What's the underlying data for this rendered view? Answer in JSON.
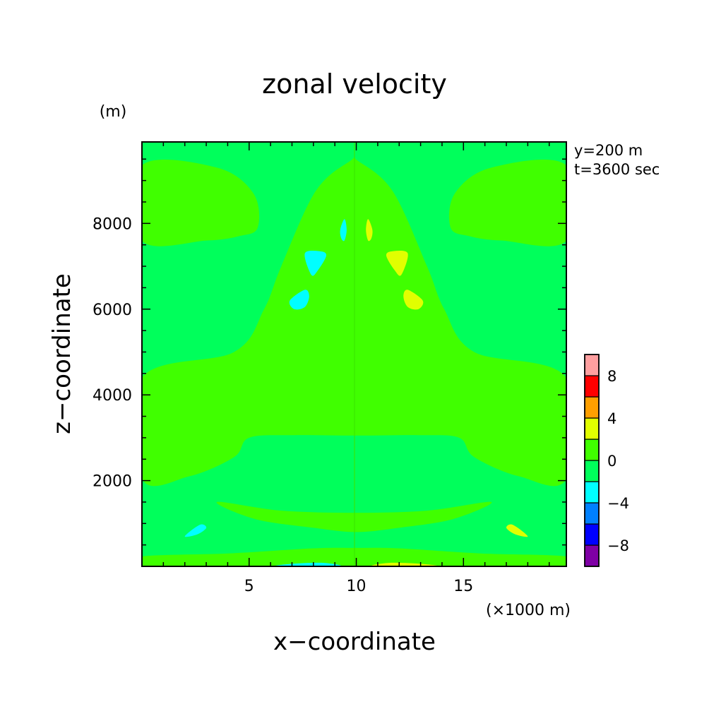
{
  "chart_data": {
    "type": "heatmap",
    "title": "zonal velocity",
    "xlabel": "x−coordinate",
    "ylabel": "z−coordinate",
    "y_unit": "(m)",
    "x_unit": "(×1000 m)",
    "xlim": [
      0,
      19.8
    ],
    "ylim": [
      0,
      9900
    ],
    "x_ticks": [
      5,
      10,
      15
    ],
    "x_tick_labels": [
      "5",
      "10",
      "15"
    ],
    "y_ticks": [
      2000,
      4000,
      6000,
      8000
    ],
    "y_tick_labels": [
      "2000",
      "4000",
      "6000",
      "8000"
    ],
    "annotations": [
      "y=200 m",
      "t=3600 sec"
    ],
    "colorbar": {
      "levels": [
        -10,
        -8,
        -6,
        -4,
        -2,
        0,
        2,
        4,
        6,
        8,
        10
      ],
      "colors": [
        "#7f00a5",
        "#0000ff",
        "#0080ff",
        "#00ffff",
        "#00ff5b",
        "#40ff00",
        "#e1ff00",
        "#ff9f00",
        "#ff0000",
        "#ff9fa0"
      ],
      "tick_values": [
        -8,
        -4,
        0,
        4,
        8
      ],
      "tick_labels": [
        "−8",
        "−4",
        "0",
        "4",
        "8"
      ]
    },
    "background_band": "0 to -2",
    "regions": [
      {
        "name": "upper-left-lobe",
        "band": "0 to 2",
        "pts": [
          [
            0,
            9350
          ],
          [
            3.5,
            9300
          ],
          [
            5.2,
            8700
          ],
          [
            5.4,
            7900
          ],
          [
            4.5,
            7700
          ],
          [
            3,
            7600
          ],
          [
            0,
            7600
          ]
        ]
      },
      {
        "name": "upper-right-lobe",
        "band": "0 to 2",
        "pts": [
          [
            19.8,
            9350
          ],
          [
            16.3,
            9300
          ],
          [
            14.6,
            8700
          ],
          [
            14.4,
            7900
          ],
          [
            15.3,
            7700
          ],
          [
            16.8,
            7600
          ],
          [
            19.8,
            7600
          ]
        ]
      },
      {
        "name": "central-plume",
        "band": "0 to 2",
        "pts": [
          [
            9.7,
            9450
          ],
          [
            8.1,
            8750
          ],
          [
            6.5,
            7000
          ],
          [
            5.7,
            6000
          ],
          [
            4.3,
            5000
          ],
          [
            0,
            4400
          ],
          [
            0,
            2050
          ],
          [
            2.2,
            2100
          ],
          [
            4.3,
            2550
          ],
          [
            5,
            3000
          ],
          [
            7,
            3060
          ],
          [
            10,
            3050
          ],
          [
            13,
            3060
          ],
          [
            14.8,
            3000
          ],
          [
            15.5,
            2550
          ],
          [
            17.6,
            2100
          ],
          [
            19.8,
            2050
          ],
          [
            19.8,
            4400
          ],
          [
            15.5,
            5000
          ],
          [
            14.1,
            6000
          ],
          [
            13.3,
            7000
          ],
          [
            11.7,
            8750
          ],
          [
            10.1,
            9450
          ]
        ]
      },
      {
        "name": "lower-band",
        "band": "0 to 2",
        "pts": [
          [
            3.5,
            1500
          ],
          [
            6.5,
            1300
          ],
          [
            10,
            1250
          ],
          [
            13.3,
            1300
          ],
          [
            16.3,
            1500
          ],
          [
            14.5,
            1100
          ],
          [
            12,
            900
          ],
          [
            10,
            800
          ],
          [
            8,
            900
          ],
          [
            5.3,
            1100
          ]
        ]
      },
      {
        "name": "bottom-strip",
        "band": "0 to 2",
        "pts": [
          [
            0,
            230
          ],
          [
            4,
            300
          ],
          [
            8,
            420
          ],
          [
            10,
            430
          ],
          [
            12,
            420
          ],
          [
            15.8,
            300
          ],
          [
            19.8,
            230
          ],
          [
            19.8,
            0
          ],
          [
            0,
            0
          ]
        ]
      },
      {
        "name": "neg-core-1",
        "band": "-2 to -4",
        "pts": [
          [
            9.45,
            8100
          ],
          [
            9.25,
            7850
          ],
          [
            9.3,
            7650
          ],
          [
            9.45,
            7600
          ],
          [
            9.55,
            7850
          ]
        ]
      },
      {
        "name": "neg-core-2",
        "band": "-2 to -4",
        "pts": [
          [
            7.6,
            7300
          ],
          [
            8.3,
            7350
          ],
          [
            8.6,
            7250
          ],
          [
            8.2,
            6900
          ],
          [
            7.9,
            6800
          ]
        ]
      },
      {
        "name": "neg-core-3",
        "band": "-2 to -4",
        "pts": [
          [
            6.9,
            6200
          ],
          [
            7.6,
            6450
          ],
          [
            7.8,
            6300
          ],
          [
            7.6,
            6050
          ],
          [
            7.1,
            6000
          ]
        ]
      },
      {
        "name": "neg-core-4",
        "band": "-2 to -4",
        "pts": [
          [
            2.0,
            700
          ],
          [
            2.7,
            970
          ],
          [
            3.0,
            900
          ],
          [
            2.6,
            750
          ]
        ]
      },
      {
        "name": "neg-core-5",
        "band": "-2 to -4",
        "pts": [
          [
            6.3,
            0
          ],
          [
            7,
            60
          ],
          [
            8.5,
            80
          ],
          [
            9.2,
            0
          ]
        ]
      },
      {
        "name": "pos-core-1",
        "band": "2 to 4",
        "pts": [
          [
            10.55,
            8100
          ],
          [
            10.75,
            7850
          ],
          [
            10.7,
            7650
          ],
          [
            10.55,
            7600
          ],
          [
            10.45,
            7850
          ]
        ]
      },
      {
        "name": "pos-core-2",
        "band": "2 to 4",
        "pts": [
          [
            12.4,
            7300
          ],
          [
            11.7,
            7350
          ],
          [
            11.4,
            7250
          ],
          [
            11.8,
            6900
          ],
          [
            12.1,
            6800
          ]
        ]
      },
      {
        "name": "pos-core-3",
        "band": "2 to 4",
        "pts": [
          [
            13.1,
            6200
          ],
          [
            12.4,
            6450
          ],
          [
            12.2,
            6300
          ],
          [
            12.4,
            6050
          ],
          [
            12.9,
            6000
          ]
        ]
      },
      {
        "name": "pos-core-4",
        "band": "2 to 4",
        "pts": [
          [
            18,
            700
          ],
          [
            17.3,
            970
          ],
          [
            17,
            900
          ],
          [
            17.4,
            750
          ]
        ]
      },
      {
        "name": "pos-core-5",
        "band": "2 to 4",
        "pts": [
          [
            10.8,
            0
          ],
          [
            11.5,
            80
          ],
          [
            13,
            60
          ],
          [
            13.7,
            0
          ]
        ]
      }
    ]
  }
}
